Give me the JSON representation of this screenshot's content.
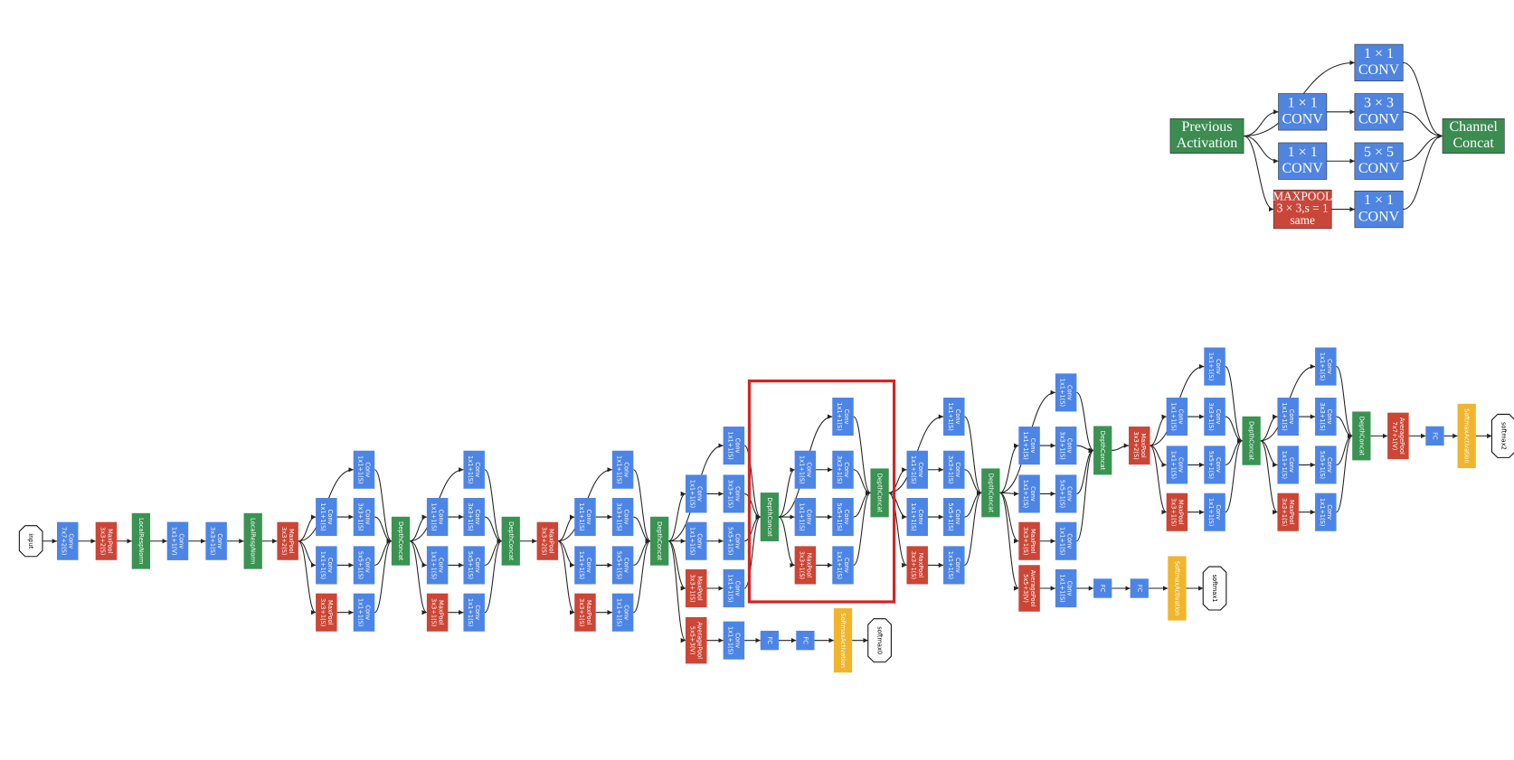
{
  "inception_module": {
    "nodes": [
      {
        "lines": [
          "Previous",
          "Activation"
        ],
        "color": "#3b8c50"
      },
      {
        "lines": [
          "1 × 1",
          "CONV"
        ],
        "color": "#4f85e0"
      },
      {
        "lines": [
          "1 × 1",
          "CONV"
        ],
        "color": "#4f85e0"
      },
      {
        "lines": [
          "3 × 3",
          "CONV"
        ],
        "color": "#4f85e0"
      },
      {
        "lines": [
          "1 × 1",
          "CONV"
        ],
        "color": "#4f85e0"
      },
      {
        "lines": [
          "5 × 5",
          "CONV"
        ],
        "color": "#4f85e0"
      },
      {
        "lines": [
          "MAXPOOL",
          "3 × 3,s = 1",
          "same"
        ],
        "color": "#c9473a"
      },
      {
        "lines": [
          "1 × 1",
          "CONV"
        ],
        "color": "#4f85e0"
      },
      {
        "lines": [
          "Channel",
          "Concat"
        ],
        "color": "#3b8c50"
      }
    ]
  },
  "network": {
    "nodes": [
      {
        "lines": [
          "input"
        ],
        "color": "#ffffff"
      },
      {
        "lines": [
          "Conv",
          "7x7+2(S)"
        ],
        "color": "#4d85e6"
      },
      {
        "lines": [
          "MaxPool",
          "3x3+2(S)"
        ],
        "color": "#cc4535"
      },
      {
        "lines": [
          "LocalRespNorm"
        ],
        "color": "#3a9352"
      },
      {
        "lines": [
          "Conv",
          "1x1+1(V)"
        ],
        "color": "#4d85e6"
      },
      {
        "lines": [
          "Conv",
          "3x3+1(S)"
        ],
        "color": "#4d85e6"
      },
      {
        "lines": [
          "LocalRespNorm"
        ],
        "color": "#3a9352"
      },
      {
        "lines": [
          "MaxPool",
          "3x3+2(S)"
        ],
        "color": "#cc4535"
      },
      {
        "lines": [
          "Conv",
          "1x1+1(S)"
        ],
        "color": "#4d85e6"
      },
      {
        "lines": [
          "Conv",
          "1x1+1(S)"
        ],
        "color": "#4d85e6"
      },
      {
        "lines": [
          "Conv",
          "1x1+1(S)"
        ],
        "color": "#4d85e6"
      },
      {
        "lines": [
          "MaxPool",
          "3x3+1(S)"
        ],
        "color": "#cc4535"
      },
      {
        "lines": [
          "Conv",
          "3x3+1(S)"
        ],
        "color": "#4d85e6"
      },
      {
        "lines": [
          "Conv",
          "5x5+1(S)"
        ],
        "color": "#4d85e6"
      },
      {
        "lines": [
          "Conv",
          "1x1+1(S)"
        ],
        "color": "#4d85e6"
      },
      {
        "lines": [
          "DepthConcat"
        ],
        "color": "#3a9352"
      },
      {
        "lines": [
          "Conv",
          "1x1+1(S)"
        ],
        "color": "#4d85e6"
      },
      {
        "lines": [
          "Conv",
          "1x1+1(S)"
        ],
        "color": "#4d85e6"
      },
      {
        "lines": [
          "Conv",
          "1x1+1(S)"
        ],
        "color": "#4d85e6"
      },
      {
        "lines": [
          "MaxPool",
          "3x3+1(S)"
        ],
        "color": "#cc4535"
      },
      {
        "lines": [
          "Conv",
          "3x3+1(S)"
        ],
        "color": "#4d85e6"
      },
      {
        "lines": [
          "Conv",
          "5x5+1(S)"
        ],
        "color": "#4d85e6"
      },
      {
        "lines": [
          "Conv",
          "1x1+1(S)"
        ],
        "color": "#4d85e6"
      },
      {
        "lines": [
          "DepthConcat"
        ],
        "color": "#3a9352"
      },
      {
        "lines": [
          "MaxPool",
          "3x3+2(S)"
        ],
        "color": "#cc4535"
      },
      {
        "lines": [
          "Conv",
          "1x1+1(S)"
        ],
        "color": "#4d85e6"
      },
      {
        "lines": [
          "Conv",
          "1x1+1(S)"
        ],
        "color": "#4d85e6"
      },
      {
        "lines": [
          "Conv",
          "1x1+1(S)"
        ],
        "color": "#4d85e6"
      },
      {
        "lines": [
          "MaxPool",
          "3x3+1(S)"
        ],
        "color": "#cc4535"
      },
      {
        "lines": [
          "Conv",
          "3x3+1(S)"
        ],
        "color": "#4d85e6"
      },
      {
        "lines": [
          "Conv",
          "5x5+1(S)"
        ],
        "color": "#4d85e6"
      },
      {
        "lines": [
          "Conv",
          "1x1+1(S)"
        ],
        "color": "#4d85e6"
      },
      {
        "lines": [
          "DepthConcat"
        ],
        "color": "#3a9352"
      },
      {
        "lines": [
          "Conv",
          "1x1+1(S)"
        ],
        "color": "#4d85e6"
      },
      {
        "lines": [
          "Conv",
          "1x1+1(S)"
        ],
        "color": "#4d85e6"
      },
      {
        "lines": [
          "Conv",
          "1x1+1(S)"
        ],
        "color": "#4d85e6"
      },
      {
        "lines": [
          "MaxPool",
          "3x3+1(S)"
        ],
        "color": "#cc4535"
      },
      {
        "lines": [
          "Conv",
          "3x3+1(S)"
        ],
        "color": "#4d85e6"
      },
      {
        "lines": [
          "Conv",
          "5x5+1(S)"
        ],
        "color": "#4d85e6"
      },
      {
        "lines": [
          "Conv",
          "1x1+1(S)"
        ],
        "color": "#4d85e6"
      },
      {
        "lines": [
          "AveragePool",
          "5x5+3(V)"
        ],
        "color": "#cc4535"
      },
      {
        "lines": [
          "Conv",
          "1x1+1(S)"
        ],
        "color": "#4d85e6"
      },
      {
        "lines": [
          "FC"
        ],
        "color": "#4d85e6"
      },
      {
        "lines": [
          "FC"
        ],
        "color": "#4d85e6"
      },
      {
        "lines": [
          "SoftmaxActivation"
        ],
        "color": "#f0b52c"
      },
      {
        "lines": [
          "softmax0"
        ],
        "color": "#ffffff"
      },
      {
        "lines": [
          "DepthConcat"
        ],
        "color": "#3a9352"
      },
      {
        "lines": [
          "Conv",
          "1x1+1(S)"
        ],
        "color": "#4d85e6"
      },
      {
        "lines": [
          "Conv",
          "1x1+1(S)"
        ],
        "color": "#4d85e6"
      },
      {
        "lines": [
          "Conv",
          "1x1+1(S)"
        ],
        "color": "#4d85e6"
      },
      {
        "lines": [
          "MaxPool",
          "3x3+1(S)"
        ],
        "color": "#cc4535"
      },
      {
        "lines": [
          "Conv",
          "3x3+1(S)"
        ],
        "color": "#4d85e6"
      },
      {
        "lines": [
          "Conv",
          "5x5+1(S)"
        ],
        "color": "#4d85e6"
      },
      {
        "lines": [
          "Conv",
          "1x1+1(S)"
        ],
        "color": "#4d85e6"
      },
      {
        "lines": [
          "DepthConcat"
        ],
        "color": "#3a9352"
      },
      {
        "lines": [
          "Conv",
          "1x1+1(S)"
        ],
        "color": "#4d85e6"
      },
      {
        "lines": [
          "Conv",
          "1x1+1(S)"
        ],
        "color": "#4d85e6"
      },
      {
        "lines": [
          "Conv",
          "1x1+1(S)"
        ],
        "color": "#4d85e6"
      },
      {
        "lines": [
          "MaxPool",
          "3x3+1(S)"
        ],
        "color": "#cc4535"
      },
      {
        "lines": [
          "Conv",
          "3x3+1(S)"
        ],
        "color": "#4d85e6"
      },
      {
        "lines": [
          "Conv",
          "5x5+1(S)"
        ],
        "color": "#4d85e6"
      },
      {
        "lines": [
          "Conv",
          "1x1+1(S)"
        ],
        "color": "#4d85e6"
      },
      {
        "lines": [
          "DepthConcat"
        ],
        "color": "#3a9352"
      },
      {
        "lines": [
          "Conv",
          "1x1+1(S)"
        ],
        "color": "#4d85e6"
      },
      {
        "lines": [
          "Conv",
          "1x1+1(S)"
        ],
        "color": "#4d85e6"
      },
      {
        "lines": [
          "Conv",
          "1x1+1(S)"
        ],
        "color": "#4d85e6"
      },
      {
        "lines": [
          "MaxPool",
          "3x3+1(S)"
        ],
        "color": "#cc4535"
      },
      {
        "lines": [
          "Conv",
          "3x3+1(S)"
        ],
        "color": "#4d85e6"
      },
      {
        "lines": [
          "Conv",
          "5x5+1(S)"
        ],
        "color": "#4d85e6"
      },
      {
        "lines": [
          "Conv",
          "1x1+1(S)"
        ],
        "color": "#4d85e6"
      },
      {
        "lines": [
          "AveragePool",
          "5x5+3(V)"
        ],
        "color": "#cc4535"
      },
      {
        "lines": [
          "Conv",
          "1x1+1(S)"
        ],
        "color": "#4d85e6"
      },
      {
        "lines": [
          "FC"
        ],
        "color": "#4d85e6"
      },
      {
        "lines": [
          "FC"
        ],
        "color": "#4d85e6"
      },
      {
        "lines": [
          "SoftmaxActivation"
        ],
        "color": "#f0b52c"
      },
      {
        "lines": [
          "softmax1"
        ],
        "color": "#ffffff"
      },
      {
        "lines": [
          "DepthConcat"
        ],
        "color": "#3a9352"
      },
      {
        "lines": [
          "MaxPool",
          "3x3+2(S)"
        ],
        "color": "#cc4535"
      },
      {
        "lines": [
          "Conv",
          "1x1+1(S)"
        ],
        "color": "#4d85e6"
      },
      {
        "lines": [
          "Conv",
          "1x1+1(S)"
        ],
        "color": "#4d85e6"
      },
      {
        "lines": [
          "Conv",
          "1x1+1(S)"
        ],
        "color": "#4d85e6"
      },
      {
        "lines": [
          "MaxPool",
          "3x3+1(S)"
        ],
        "color": "#cc4535"
      },
      {
        "lines": [
          "Conv",
          "3x3+1(S)"
        ],
        "color": "#4d85e6"
      },
      {
        "lines": [
          "Conv",
          "5x5+1(S)"
        ],
        "color": "#4d85e6"
      },
      {
        "lines": [
          "Conv",
          "1x1+1(S)"
        ],
        "color": "#4d85e6"
      },
      {
        "lines": [
          "DepthConcat"
        ],
        "color": "#3a9352"
      },
      {
        "lines": [
          "Conv",
          "1x1+1(S)"
        ],
        "color": "#4d85e6"
      },
      {
        "lines": [
          "Conv",
          "1x1+1(S)"
        ],
        "color": "#4d85e6"
      },
      {
        "lines": [
          "Conv",
          "1x1+1(S)"
        ],
        "color": "#4d85e6"
      },
      {
        "lines": [
          "MaxPool",
          "3x3+1(S)"
        ],
        "color": "#cc4535"
      },
      {
        "lines": [
          "Conv",
          "3x3+1(S)"
        ],
        "color": "#4d85e6"
      },
      {
        "lines": [
          "Conv",
          "5x5+1(S)"
        ],
        "color": "#4d85e6"
      },
      {
        "lines": [
          "Conv",
          "1x1+1(S)"
        ],
        "color": "#4d85e6"
      },
      {
        "lines": [
          "DepthConcat"
        ],
        "color": "#3a9352"
      },
      {
        "lines": [
          "AveragePool",
          "7x7+1(V)"
        ],
        "color": "#cc4535"
      },
      {
        "lines": [
          "FC"
        ],
        "color": "#4d85e6"
      },
      {
        "lines": [
          "SoftmaxActivation"
        ],
        "color": "#f0b52c"
      },
      {
        "lines": [
          "softmax2"
        ],
        "color": "#ffffff"
      }
    ]
  }
}
